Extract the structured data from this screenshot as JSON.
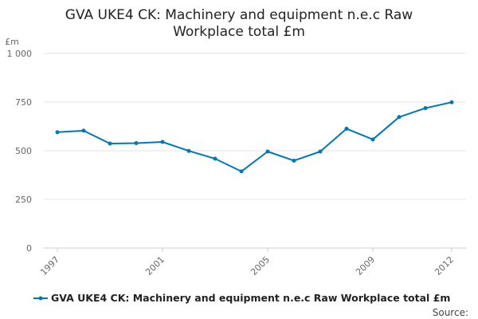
{
  "chart_data": {
    "type": "line",
    "title_lines": [
      "GVA UKE4 CK: Machinery and equipment n.e.c Raw",
      "Workplace total £m"
    ],
    "ylabel": "£m",
    "xlabel": "",
    "x": [
      1997,
      1998,
      1999,
      2000,
      2001,
      2002,
      2003,
      2004,
      2005,
      2006,
      2007,
      2008,
      2009,
      2010,
      2011,
      2012
    ],
    "series": [
      {
        "name": "GVA UKE4 CK: Machinery and equipment n.e.c Raw Workplace total £m",
        "values": [
          595,
          603,
          537,
          539,
          545,
          499,
          459,
          394,
          496,
          449,
          496,
          613,
          558,
          673,
          719,
          749
        ],
        "color": "#0077b6"
      }
    ],
    "ylim": [
      0,
      1000
    ],
    "yticks": [
      0,
      250,
      500,
      750,
      1000
    ],
    "ytick_labels": [
      "0",
      "250",
      "500",
      "750",
      "1 000"
    ],
    "xticks": [
      1997,
      2001,
      2005,
      2009,
      2012
    ],
    "xtick_labels": [
      "1997",
      "2001",
      "2005",
      "2009",
      "2012"
    ],
    "grid": true,
    "legend_position": "bottom"
  },
  "footer": {
    "source_label": "Source:"
  }
}
